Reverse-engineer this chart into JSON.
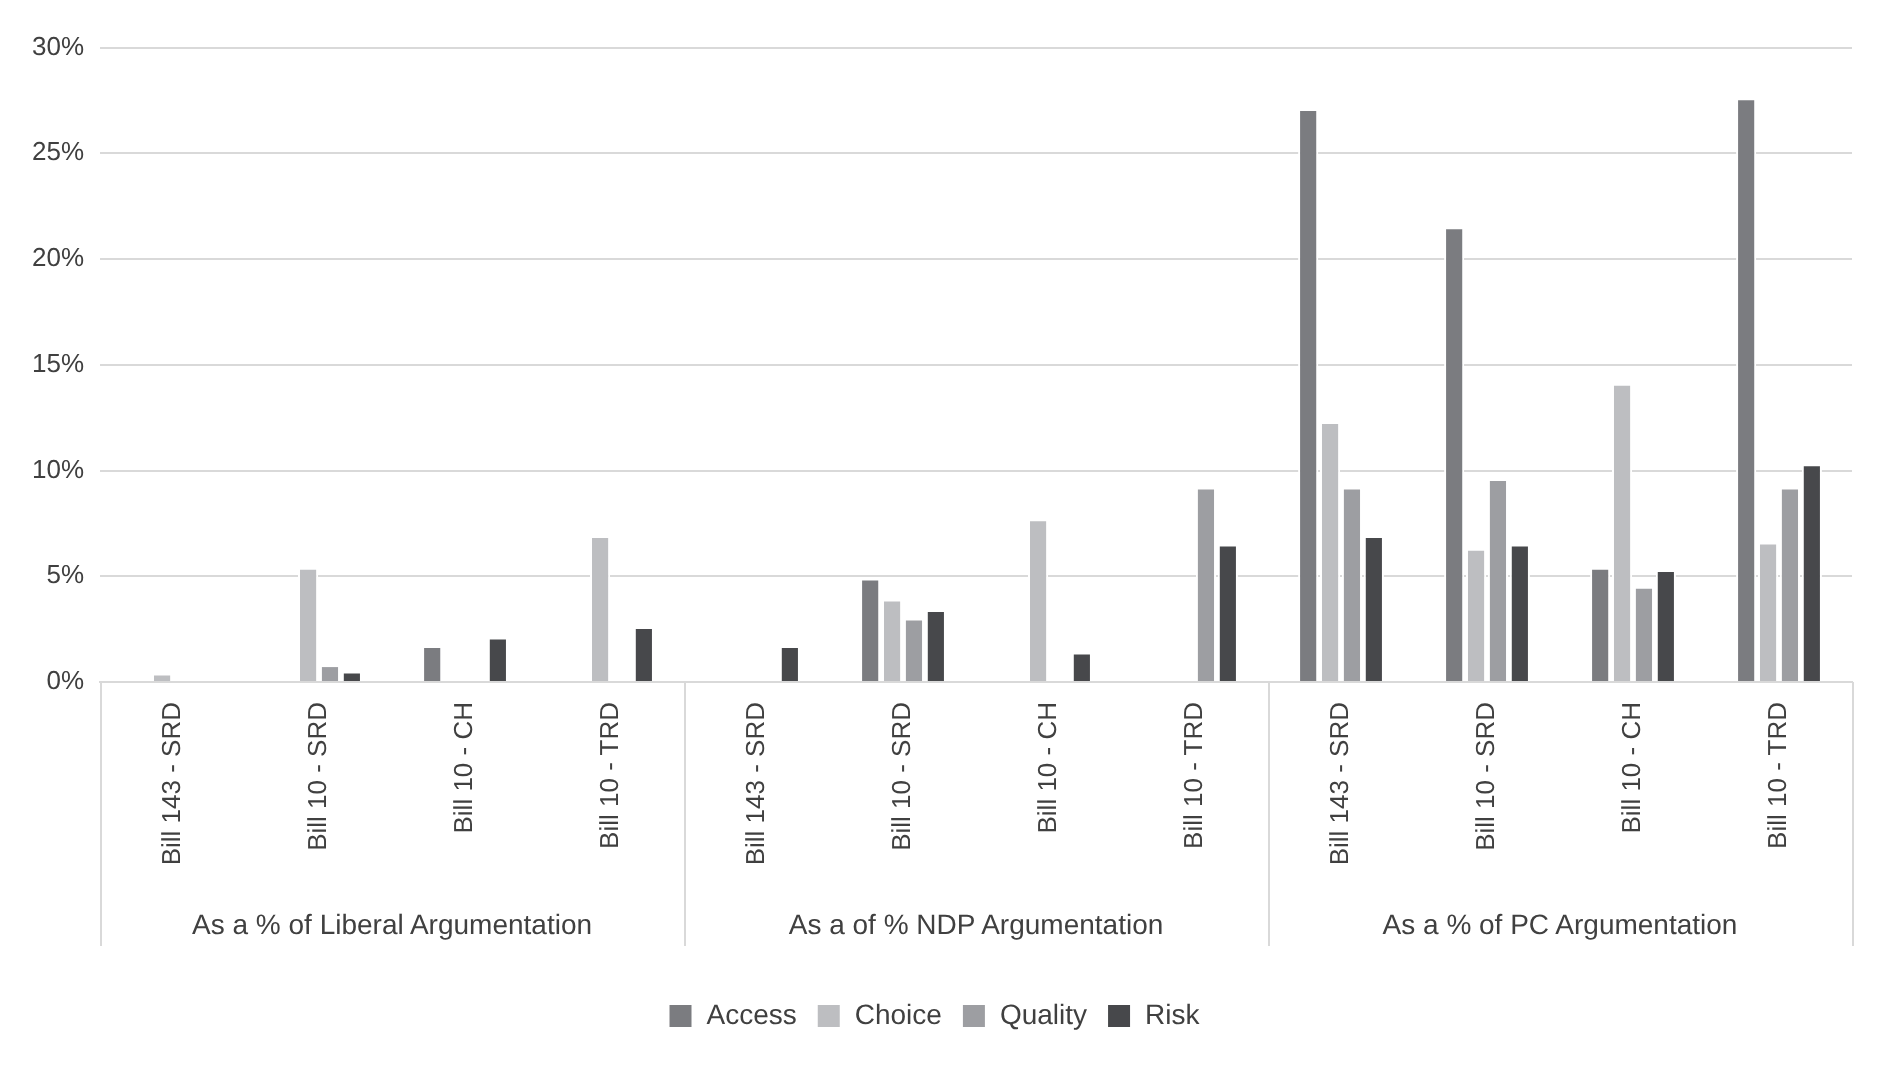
{
  "chart_data": {
    "type": "bar",
    "categories": [
      "Bill 143 - SRD",
      "Bill 10 - SRD",
      "Bill 10 - CH",
      "Bill 10 - TRD",
      "Bill 143 - SRD",
      "Bill 10 - SRD",
      "Bill 10 - CH",
      "Bill 10 - TRD",
      "Bill 143 - SRD",
      "Bill 10 - SRD",
      "Bill 10 - CH",
      "Bill 10 - TRD"
    ],
    "series": [
      {
        "name": "Access",
        "color": "#7b7c80",
        "values": [
          null,
          null,
          1.7,
          null,
          null,
          4.9,
          null,
          null,
          27.1,
          21.5,
          5.4,
          27.6
        ]
      },
      {
        "name": "Choice",
        "color": "#bdbec1",
        "values": [
          0.4,
          5.4,
          null,
          6.9,
          null,
          3.9,
          7.7,
          null,
          12.3,
          6.3,
          14.1,
          6.6
        ]
      },
      {
        "name": "Quality",
        "color": "#9d9ea2",
        "values": [
          null,
          0.8,
          null,
          null,
          null,
          3.0,
          null,
          9.2,
          9.2,
          9.6,
          4.5,
          9.2
        ]
      },
      {
        "name": "Risk",
        "color": "#47484b",
        "values": [
          null,
          0.5,
          2.1,
          2.6,
          1.7,
          3.4,
          1.4,
          6.5,
          6.9,
          6.5,
          5.3,
          10.3
        ]
      }
    ],
    "annotations": [
      "As a % of Liberal Argumentation",
      "As a of % NDP Argumentation",
      "As a % of PC Argumentation"
    ],
    "ylim": [
      0,
      30
    ],
    "yticks": [
      {
        "value": 0,
        "label": "0%"
      },
      {
        "value": 5,
        "label": "5%"
      },
      {
        "value": 10,
        "label": "10%"
      },
      {
        "value": 15,
        "label": "15%"
      },
      {
        "value": 20,
        "label": "20%"
      },
      {
        "value": 25,
        "label": "25%"
      },
      {
        "value": 30,
        "label": "30%"
      }
    ],
    "grid": "y",
    "legend": "bottom"
  }
}
